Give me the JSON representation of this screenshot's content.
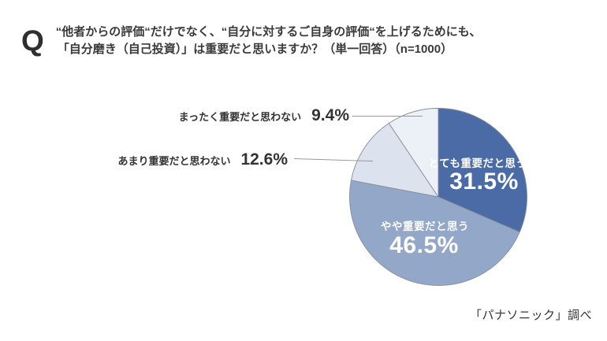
{
  "header": {
    "q_mark": "Q",
    "line1": "“他者からの評価“だけでなく、“自分に対するご自身の評価“を上げるためにも、",
    "line2": "「自分磨き（自己投資）」は重要だと思いますか？（単一回答）（n=1000）"
  },
  "chart_data": {
    "type": "pie",
    "title": "自分磨き（自己投資）は重要だと思いますか",
    "start_angle_deg": 0,
    "direction": "clockwise",
    "slices": [
      {
        "label": "とても重要だと思う",
        "value": 31.5,
        "display": "31.5%",
        "color": "#4A6BA5",
        "label_placement": "inside",
        "text_color": "#ffffff"
      },
      {
        "label": "やや重要だと思う",
        "value": 46.5,
        "display": "46.5%",
        "color": "#93A8C9",
        "label_placement": "inside",
        "text_color": "#ffffff"
      },
      {
        "label": "あまり重要だと思わない",
        "value": 12.6,
        "display": "12.6%",
        "color": "#DCE3EF",
        "label_placement": "outside-left",
        "text_color": "#333333"
      },
      {
        "label": "まったく重要だと思わない",
        "value": 9.4,
        "display": "9.4%",
        "color": "#ECF0F7",
        "label_placement": "outside-left",
        "text_color": "#333333"
      }
    ],
    "stroke_color": "#878C96",
    "legend_position": "none"
  },
  "footer": {
    "attribution": "「パナソニック」調べ"
  }
}
